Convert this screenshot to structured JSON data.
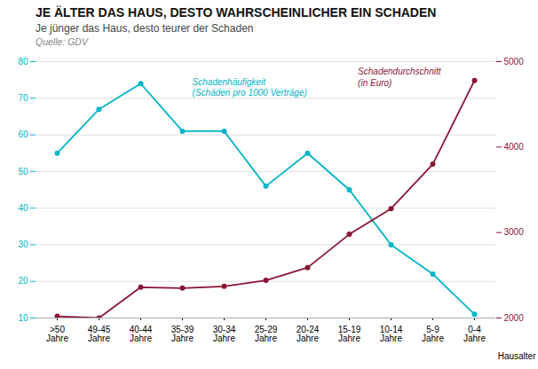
{
  "chart_data": {
    "type": "line",
    "title": "JE ÄLTER DAS HAUS, DESTO WAHRSCHEINLICHER EIN SCHADEN",
    "subtitle": "Je jünger das Haus, desto teurer der Schaden",
    "source": "Quelle: GDV",
    "xlabel": "Hausalter",
    "categories": [
      ">50\nJahre",
      "49-45\nJahre",
      "40-44\nJahre",
      "35-39\nJahre",
      "30-34\nJahre",
      "25-29\nJahre",
      "20-24\nJahre",
      "15-19\nJahre",
      "10-14\nJahre",
      "5-9\nJahre",
      "0-4\nJahre"
    ],
    "series": [
      {
        "name": "Schadenhäufigkeit\n(Schäden pro 1000 Verträge)",
        "color": "#00B4C8",
        "marker": "circle",
        "values": [
          55,
          67,
          74,
          61,
          61,
          46,
          55,
          45,
          30,
          22,
          11
        ]
      },
      {
        "name": "Schadendurchschnitt\n(in Euro)",
        "color": "#8B1535",
        "marker": "circle",
        "axis": "y2",
        "values": [
          2020,
          2000,
          2360,
          2350,
          2370,
          2440,
          2590,
          2980,
          3280,
          3800,
          4780
        ]
      }
    ],
    "ylim": [
      10,
      80
    ],
    "yticks": [
      10,
      20,
      30,
      40,
      50,
      60,
      70,
      80
    ],
    "y2lim": [
      2000,
      5000
    ],
    "y2ticks": [
      2000,
      3000,
      4000,
      5000
    ],
    "grid": true
  }
}
